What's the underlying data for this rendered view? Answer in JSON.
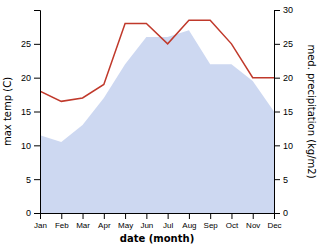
{
  "chart_data": {
    "type": "line",
    "xlabel": "date (month)",
    "ylabel": "max temp (C)",
    "y2label": "med. precipitation (kg/m2)",
    "categories": [
      "Jan",
      "Feb",
      "Mar",
      "Apr",
      "May",
      "Jun",
      "Jul",
      "Aug",
      "Sep",
      "Oct",
      "Nov",
      "Dec"
    ],
    "series": [
      {
        "type": "area",
        "color": "#c8d4f0",
        "values": [
          11.5,
          10.5,
          13.0,
          17.0,
          22.0,
          26.0,
          26.0,
          27.0,
          22.0,
          22.0,
          19.5,
          15.0
        ]
      },
      {
        "type": "line",
        "color": "#c0392b",
        "axis": "y2",
        "values": [
          18.0,
          16.5,
          17.0,
          19.0,
          28.0,
          28.0,
          25.0,
          28.5,
          28.5,
          25.0,
          20.0,
          20.0
        ]
      }
    ],
    "ylim": [
      0,
      30
    ],
    "yticks": [
      0,
      5,
      10,
      15,
      20,
      25
    ],
    "y2lim": [
      0,
      30
    ],
    "y2ticks": [
      0,
      5,
      10,
      15,
      20,
      25,
      30
    ]
  }
}
